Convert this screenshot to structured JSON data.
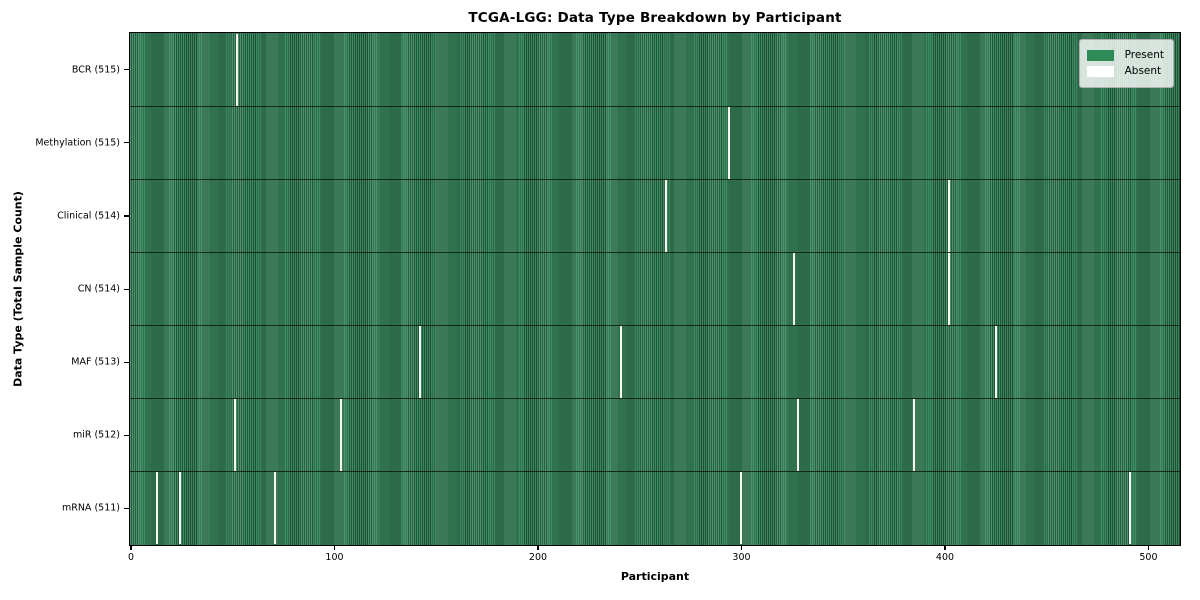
{
  "chart_data": {
    "type": "heatmap",
    "title": "TCGA-LGG: Data Type Breakdown by Participant",
    "xlabel": "Participant",
    "ylabel": "Data Type (Total Sample Count)",
    "x_ticks": [
      0,
      100,
      200,
      300,
      400,
      500
    ],
    "x_range": [
      0,
      516
    ],
    "n_participants": 516,
    "grid": false,
    "legend": {
      "position": "upper right",
      "entries": [
        {
          "label": "Present",
          "color": "#2e8b57"
        },
        {
          "label": "Absent",
          "color": "#ffffff"
        }
      ]
    },
    "rows": [
      {
        "label": "BCR (515)",
        "data_type": "BCR",
        "present_count": 515,
        "absent_participants": [
          52
        ]
      },
      {
        "label": "Methylation (515)",
        "data_type": "Methylation",
        "present_count": 515,
        "absent_participants": [
          294
        ]
      },
      {
        "label": "Clinical (514)",
        "data_type": "Clinical",
        "present_count": 514,
        "absent_participants": [
          263,
          402
        ]
      },
      {
        "label": "CN (514)",
        "data_type": "CN",
        "present_count": 514,
        "absent_participants": [
          326,
          402
        ]
      },
      {
        "label": "MAF (513)",
        "data_type": "MAF",
        "present_count": 513,
        "absent_participants": [
          142,
          241,
          425
        ]
      },
      {
        "label": "miR (512)",
        "data_type": "miR",
        "present_count": 512,
        "absent_participants": [
          51,
          103,
          328,
          385
        ]
      },
      {
        "label": "mRNA (511)",
        "data_type": "mRNA",
        "present_count": 511,
        "absent_participants": [
          13,
          24,
          71,
          300,
          491
        ]
      }
    ],
    "colors": {
      "present": "#2e8b57",
      "present_stripe_light": "#3e8e63",
      "present_stripe_dark": "#215539",
      "absent": "#f5f5f2",
      "row_divider": "rgba(8,20,12,0.78)",
      "axis": "#000000"
    }
  }
}
